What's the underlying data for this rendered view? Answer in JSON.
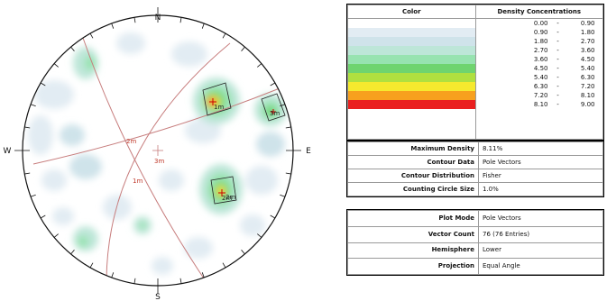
{
  "stereonet": {
    "compass": {
      "north": "N",
      "south": "S",
      "east": "E",
      "west": "W"
    },
    "set_labels": [
      "1m",
      "2m",
      "3m",
      "2m",
      "1m",
      "3m",
      "2m"
    ],
    "colors": {
      "circle": "#111111",
      "great_circle": "#c77d7d",
      "pole": "#cc0000"
    }
  },
  "legend": {
    "header_color": "Color",
    "header_density": "Density Concentrations",
    "bins": [
      {
        "color": "#ffffff",
        "min": "0.00",
        "dash": "-",
        "max": "0.90"
      },
      {
        "color": "#e2ecf3",
        "min": "0.90",
        "dash": "-",
        "max": "1.80"
      },
      {
        "color": "#cfe3ea",
        "min": "1.80",
        "dash": "-",
        "max": "2.70"
      },
      {
        "color": "#bde6d8",
        "min": "2.70",
        "dash": "-",
        "max": "3.60"
      },
      {
        "color": "#97e3b0",
        "min": "3.60",
        "dash": "-",
        "max": "4.50"
      },
      {
        "color": "#6fd46f",
        "min": "4.50",
        "dash": "-",
        "max": "5.40"
      },
      {
        "color": "#b0e040",
        "min": "5.40",
        "dash": "-",
        "max": "6.30"
      },
      {
        "color": "#f6e92e",
        "min": "6.30",
        "dash": "-",
        "max": "7.20"
      },
      {
        "color": "#f7a01e",
        "min": "7.20",
        "dash": "-",
        "max": "8.10"
      },
      {
        "color": "#ea2020",
        "min": "8.10",
        "dash": "-",
        "max": "9.00"
      }
    ]
  },
  "contour_info": [
    {
      "label": "Maximum Density",
      "value": "8.11%"
    },
    {
      "label": "Contour Data",
      "value": "Pole Vectors"
    },
    {
      "label": "Contour Distribution",
      "value": "Fisher"
    },
    {
      "label": "Counting Circle Size",
      "value": "1.0%"
    }
  ],
  "plot_info": [
    {
      "label": "Plot Mode",
      "value": "Pole Vectors"
    },
    {
      "label": "Vector Count",
      "value": "76 (76 Entries)"
    },
    {
      "label": "Hemisphere",
      "value": "Lower"
    },
    {
      "label": "Projection",
      "value": "Equal Angle"
    }
  ]
}
